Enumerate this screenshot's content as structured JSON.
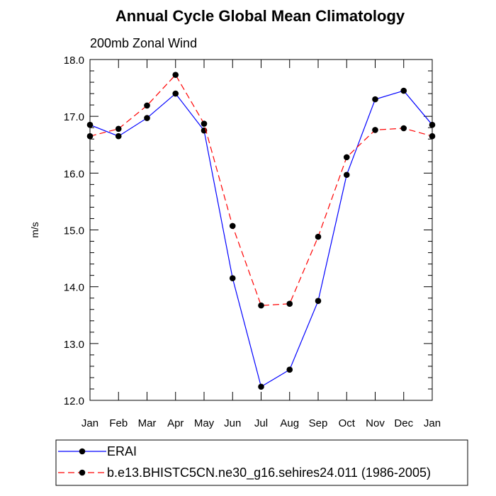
{
  "chart_data": {
    "type": "line",
    "title": "Annual Cycle Global Mean Climatology",
    "subtitle": "200mb Zonal Wind",
    "xlabel": "",
    "ylabel": "m/s",
    "categories": [
      "Jan",
      "Feb",
      "Mar",
      "Apr",
      "May",
      "Jun",
      "Jul",
      "Aug",
      "Sep",
      "Oct",
      "Nov",
      "Dec",
      "Jan"
    ],
    "ylim": [
      12.0,
      18.0
    ],
    "yticks": [
      "12.0",
      "13.0",
      "14.0",
      "15.0",
      "16.0",
      "17.0",
      "18.0"
    ],
    "grid": false,
    "legend_position": "bottom",
    "series": [
      {
        "name": "ERAI",
        "color": "#0000ff",
        "dash": "solid",
        "marker": "circle",
        "values": [
          16.85,
          16.65,
          16.97,
          17.4,
          16.75,
          14.15,
          12.24,
          12.54,
          13.75,
          15.97,
          17.3,
          17.45,
          16.85
        ]
      },
      {
        "name": "b.e13.BHISTC5CN.ne30_g16.sehires24.011 (1986-2005)",
        "color": "#ff0000",
        "dash": "dashed",
        "marker": "circle",
        "values": [
          16.65,
          16.78,
          17.19,
          17.73,
          16.87,
          15.07,
          13.67,
          13.7,
          14.88,
          16.28,
          16.76,
          16.79,
          16.65
        ]
      }
    ]
  }
}
